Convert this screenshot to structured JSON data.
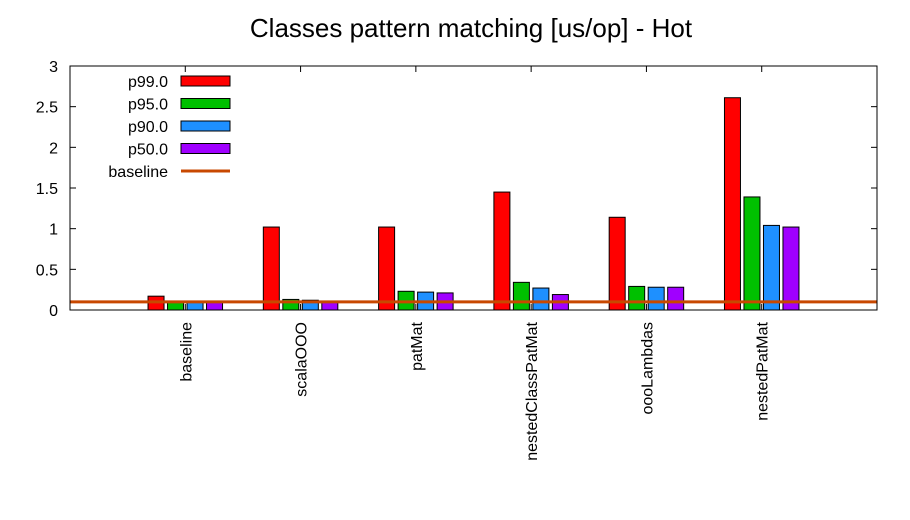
{
  "chart_data": {
    "type": "bar",
    "title": "Classes pattern matching [us/op] - Hot",
    "xlabel": "",
    "ylabel": "",
    "ylim": [
      0,
      3
    ],
    "yticks": [
      "0",
      "0.5",
      "1",
      "1.5",
      "2",
      "2.5",
      "3"
    ],
    "grid": false,
    "legend_position": "top-left",
    "categories": [
      "baseline",
      "scalaOOO",
      "patMat",
      "nestedClassPatMat",
      "oooLambdas",
      "nestedPatMat"
    ],
    "series": [
      {
        "name": "p99.0",
        "color": "#ff0000",
        "values": [
          0.17,
          1.02,
          1.02,
          1.45,
          1.14,
          2.61
        ]
      },
      {
        "name": "p95.0",
        "color": "#00c000",
        "values": [
          0.1,
          0.13,
          0.23,
          0.34,
          0.29,
          1.39
        ]
      },
      {
        "name": "p90.0",
        "color": "#1e90ff",
        "values": [
          0.1,
          0.12,
          0.22,
          0.27,
          0.28,
          1.04
        ]
      },
      {
        "name": "p50.0",
        "color": "#a000ff",
        "values": [
          0.1,
          0.11,
          0.21,
          0.19,
          0.28,
          1.02
        ]
      }
    ],
    "baseline": {
      "name": "baseline",
      "color": "#c84800",
      "value": 0.1
    }
  }
}
